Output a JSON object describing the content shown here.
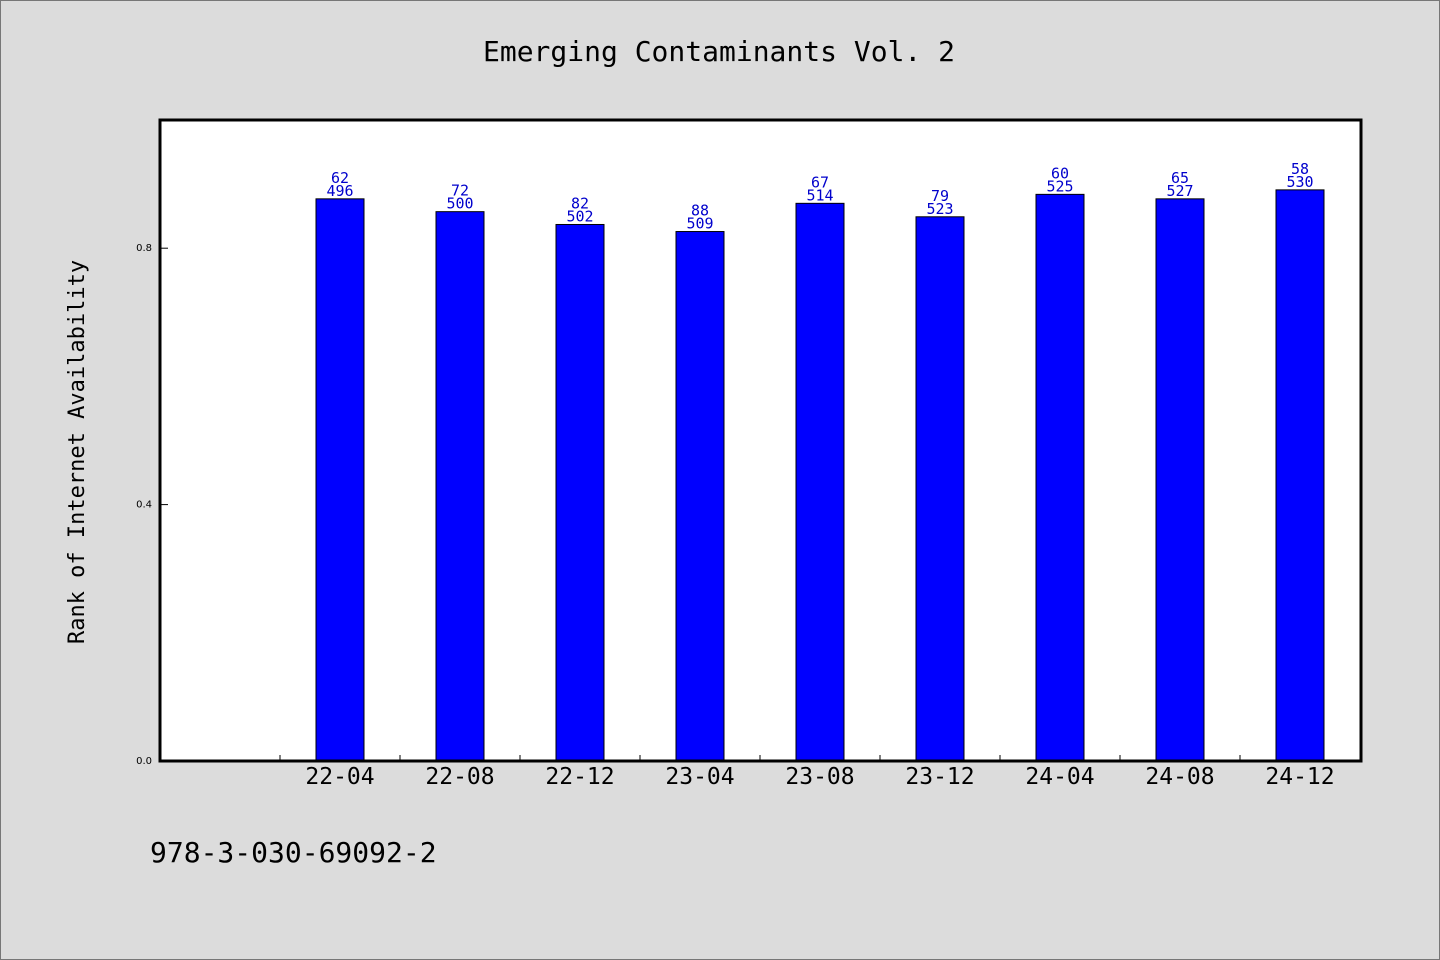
{
  "chart_data": {
    "type": "bar",
    "title": "Emerging Contaminants Vol. 2",
    "xlabel": "",
    "ylabel": "Rank of Internet Availability",
    "categories": [
      "22-04",
      "22-08",
      "22-12",
      "23-04",
      "23-08",
      "23-12",
      "24-04",
      "24-08",
      "24-12"
    ],
    "values": [
      0.877,
      0.857,
      0.837,
      0.826,
      0.87,
      0.849,
      0.884,
      0.877,
      0.891
    ],
    "bar_labels_top": [
      "62",
      "72",
      "82",
      "88",
      "67",
      "79",
      "60",
      "65",
      "58"
    ],
    "bar_labels_bottom": [
      "496",
      "500",
      "502",
      "509",
      "514",
      "523",
      "525",
      "527",
      "530"
    ],
    "yticks": [
      0.0,
      0.4,
      0.8
    ],
    "ytick_labels": [
      "0.0",
      "0.4",
      "0.8"
    ],
    "ylim": [
      0,
      1.0
    ],
    "grid": false,
    "bar_color": "#0000ff",
    "label_color": "#0000cc"
  },
  "footer": {
    "text": "978-3-030-69092-2"
  }
}
